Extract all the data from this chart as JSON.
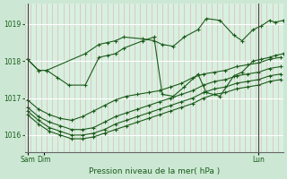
{
  "title": "Pression niveau de la mer( hPa )",
  "ylabel_ticks": [
    1016,
    1017,
    1018,
    1019
  ],
  "ylim": [
    1015.55,
    1019.55
  ],
  "xlim": [
    0,
    47
  ],
  "background_color": "#cce8d4",
  "plot_bg_color": "#d8f0e0",
  "grid_color_major": "#ffffff",
  "grid_color_minor": "#ddb8b8",
  "line_color": "#1a5c1a",
  "x_sam": 0.5,
  "x_dim": 3.5,
  "x_lun": 42.5,
  "series": [
    {
      "name": "s1_high",
      "pts": [
        [
          0.5,
          1018.05
        ],
        [
          2.5,
          1017.75
        ],
        [
          4.0,
          1017.75
        ],
        [
          11.0,
          1018.2
        ],
        [
          13.5,
          1018.45
        ],
        [
          15.0,
          1018.5
        ],
        [
          16.5,
          1018.55
        ],
        [
          18.0,
          1018.65
        ],
        [
          21.5,
          1018.6
        ],
        [
          23.5,
          1018.55
        ],
        [
          25.0,
          1018.45
        ],
        [
          27.0,
          1018.4
        ],
        [
          29.0,
          1018.65
        ],
        [
          31.5,
          1018.85
        ],
        [
          33.0,
          1019.15
        ],
        [
          35.5,
          1019.1
        ],
        [
          38.0,
          1018.7
        ],
        [
          39.5,
          1018.55
        ],
        [
          41.5,
          1018.85
        ],
        [
          43.0,
          1018.95
        ],
        [
          44.5,
          1019.1
        ],
        [
          45.5,
          1019.05
        ],
        [
          47.0,
          1019.1
        ]
      ]
    },
    {
      "name": "s2_drop",
      "pts": [
        [
          0.5,
          1018.05
        ],
        [
          2.5,
          1017.75
        ],
        [
          4.0,
          1017.75
        ],
        [
          6.0,
          1017.55
        ],
        [
          8.0,
          1017.35
        ],
        [
          11.0,
          1017.35
        ],
        [
          13.5,
          1018.1
        ],
        [
          15.0,
          1018.15
        ],
        [
          16.5,
          1018.2
        ],
        [
          18.0,
          1018.35
        ],
        [
          21.5,
          1018.55
        ],
        [
          23.5,
          1018.65
        ],
        [
          25.0,
          1017.1
        ],
        [
          27.0,
          1017.05
        ],
        [
          29.0,
          1017.3
        ],
        [
          31.5,
          1017.65
        ],
        [
          33.0,
          1017.15
        ],
        [
          35.5,
          1017.05
        ],
        [
          38.0,
          1017.6
        ],
        [
          39.5,
          1017.7
        ],
        [
          41.5,
          1018.0
        ],
        [
          43.0,
          1018.05
        ],
        [
          44.5,
          1018.1
        ],
        [
          45.5,
          1018.15
        ],
        [
          47.0,
          1018.2
        ]
      ]
    },
    {
      "name": "s3_linear1",
      "pts": [
        [
          0.5,
          1016.95
        ],
        [
          2.5,
          1016.7
        ],
        [
          4.5,
          1016.55
        ],
        [
          6.5,
          1016.45
        ],
        [
          8.5,
          1016.4
        ],
        [
          10.5,
          1016.5
        ],
        [
          12.5,
          1016.65
        ],
        [
          14.5,
          1016.8
        ],
        [
          16.5,
          1016.95
        ],
        [
          18.5,
          1017.05
        ],
        [
          20.5,
          1017.1
        ],
        [
          22.5,
          1017.15
        ],
        [
          24.5,
          1017.2
        ],
        [
          26.5,
          1017.3
        ],
        [
          28.5,
          1017.4
        ],
        [
          30.5,
          1017.55
        ],
        [
          32.5,
          1017.65
        ],
        [
          34.5,
          1017.7
        ],
        [
          36.5,
          1017.75
        ],
        [
          38.5,
          1017.85
        ],
        [
          40.5,
          1017.9
        ],
        [
          42.5,
          1017.95
        ],
        [
          44.5,
          1018.05
        ],
        [
          46.5,
          1018.1
        ]
      ]
    },
    {
      "name": "s4_linear2",
      "pts": [
        [
          0.5,
          1016.75
        ],
        [
          2.5,
          1016.5
        ],
        [
          4.5,
          1016.35
        ],
        [
          6.5,
          1016.25
        ],
        [
          8.5,
          1016.15
        ],
        [
          10.5,
          1016.15
        ],
        [
          12.5,
          1016.2
        ],
        [
          14.5,
          1016.35
        ],
        [
          16.5,
          1016.5
        ],
        [
          18.5,
          1016.6
        ],
        [
          20.5,
          1016.7
        ],
        [
          22.5,
          1016.8
        ],
        [
          24.5,
          1016.9
        ],
        [
          26.5,
          1017.0
        ],
        [
          28.5,
          1017.1
        ],
        [
          30.5,
          1017.2
        ],
        [
          32.5,
          1017.35
        ],
        [
          34.5,
          1017.45
        ],
        [
          36.5,
          1017.5
        ],
        [
          38.5,
          1017.6
        ],
        [
          40.5,
          1017.65
        ],
        [
          42.5,
          1017.7
        ],
        [
          44.5,
          1017.8
        ],
        [
          46.5,
          1017.85
        ]
      ]
    },
    {
      "name": "s5_linear3",
      "pts": [
        [
          0.5,
          1016.65
        ],
        [
          2.5,
          1016.4
        ],
        [
          4.5,
          1016.2
        ],
        [
          6.5,
          1016.1
        ],
        [
          8.5,
          1016.0
        ],
        [
          10.5,
          1016.0
        ],
        [
          12.5,
          1016.05
        ],
        [
          14.5,
          1016.15
        ],
        [
          16.5,
          1016.3
        ],
        [
          18.5,
          1016.4
        ],
        [
          20.5,
          1016.5
        ],
        [
          22.5,
          1016.6
        ],
        [
          24.5,
          1016.7
        ],
        [
          26.5,
          1016.8
        ],
        [
          28.5,
          1016.9
        ],
        [
          30.5,
          1017.0
        ],
        [
          32.5,
          1017.15
        ],
        [
          34.5,
          1017.25
        ],
        [
          36.5,
          1017.3
        ],
        [
          38.5,
          1017.4
        ],
        [
          40.5,
          1017.45
        ],
        [
          42.5,
          1017.5
        ],
        [
          44.5,
          1017.6
        ],
        [
          46.5,
          1017.65
        ]
      ]
    },
    {
      "name": "s6_linear4",
      "pts": [
        [
          0.5,
          1016.55
        ],
        [
          2.5,
          1016.3
        ],
        [
          4.5,
          1016.1
        ],
        [
          6.5,
          1016.0
        ],
        [
          8.5,
          1015.9
        ],
        [
          10.5,
          1015.9
        ],
        [
          12.5,
          1015.95
        ],
        [
          14.5,
          1016.05
        ],
        [
          16.5,
          1016.15
        ],
        [
          18.5,
          1016.25
        ],
        [
          20.5,
          1016.35
        ],
        [
          22.5,
          1016.45
        ],
        [
          24.5,
          1016.55
        ],
        [
          26.5,
          1016.65
        ],
        [
          28.5,
          1016.75
        ],
        [
          30.5,
          1016.85
        ],
        [
          32.5,
          1017.0
        ],
        [
          34.5,
          1017.1
        ],
        [
          36.5,
          1017.15
        ],
        [
          38.5,
          1017.25
        ],
        [
          40.5,
          1017.3
        ],
        [
          42.5,
          1017.35
        ],
        [
          44.5,
          1017.45
        ],
        [
          46.5,
          1017.5
        ]
      ]
    }
  ],
  "xtick_positions": [
    0.5,
    3.5,
    42.5
  ],
  "xtick_labels": [
    "Sam",
    "Dim",
    "Lun"
  ]
}
